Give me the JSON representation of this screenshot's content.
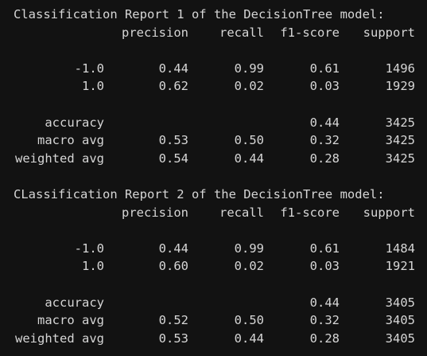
{
  "reports": [
    {
      "title": "Classification Report 1 of the DecisionTree model:",
      "columns": [
        "precision",
        "recall",
        "f1-score",
        "support"
      ],
      "rows": [
        [
          "-1.0",
          "0.44",
          "0.99",
          "0.61",
          "1496"
        ],
        [
          "1.0",
          "0.62",
          "0.02",
          "0.03",
          "1929"
        ],
        [
          "accuracy",
          null,
          null,
          "0.44",
          "3425"
        ],
        [
          "macro avg",
          "0.53",
          "0.50",
          "0.32",
          "3425"
        ],
        [
          "weighted avg",
          "0.54",
          "0.44",
          "0.28",
          "3425"
        ]
      ]
    },
    {
      "title": "CLassification Report 2 of the DecisionTree model:",
      "columns": [
        "precision",
        "recall",
        "f1-score",
        "support"
      ],
      "rows": [
        [
          "-1.0",
          "0.44",
          "0.99",
          "0.61",
          "1484"
        ],
        [
          "1.0",
          "0.60",
          "0.02",
          "0.03",
          "1921"
        ],
        [
          "accuracy",
          null,
          null,
          "0.44",
          "3405"
        ],
        [
          "macro avg",
          "0.52",
          "0.50",
          "0.32",
          "3405"
        ],
        [
          "weighted avg",
          "0.53",
          "0.44",
          "0.28",
          "3405"
        ]
      ]
    }
  ]
}
